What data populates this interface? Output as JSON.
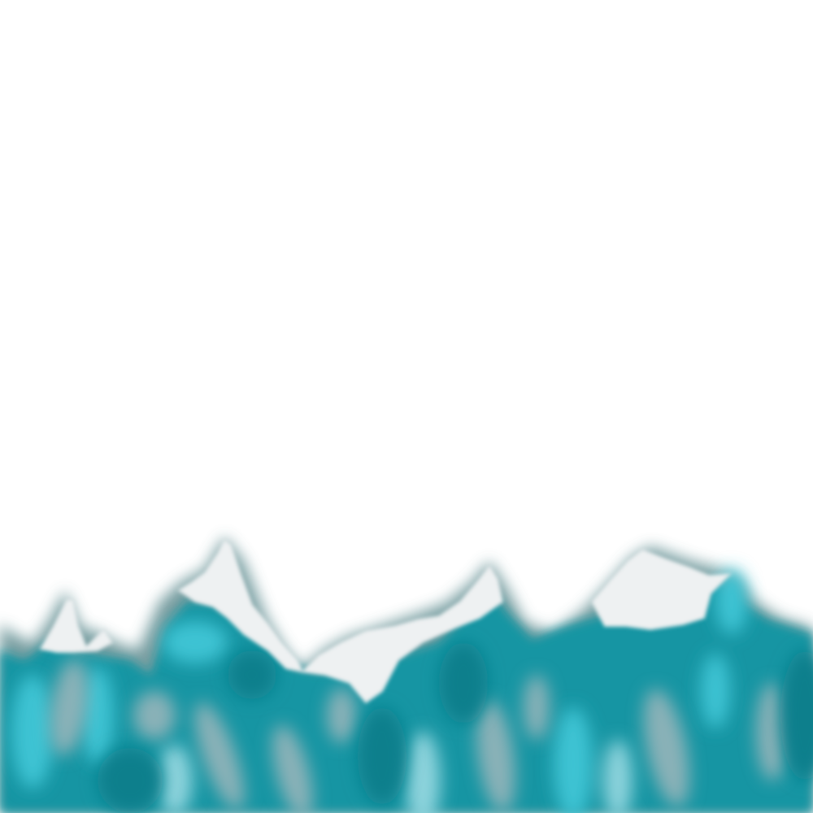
{
  "scene": {
    "background": "#ffffff",
    "colors": {
      "halo": "#5f8c90",
      "snow": "#eef1f2",
      "snow_shadow": "#d9e2e4",
      "teal_dark": "#0e7f8c",
      "teal_mid": "#1595a3",
      "teal_light": "#3ec3d3",
      "teal_pale": "#8cd3dc",
      "gray_streak": "#9db6bb"
    }
  }
}
